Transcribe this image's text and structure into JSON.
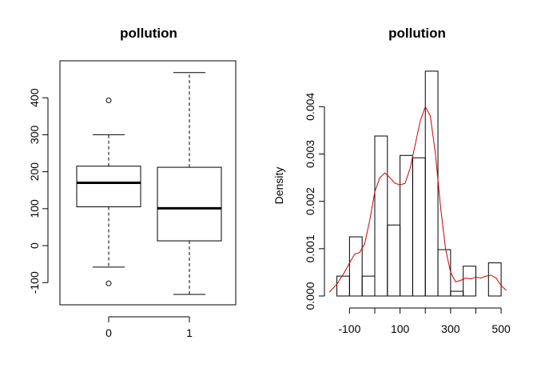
{
  "chart_data": [
    {
      "type": "boxplot",
      "title": "pollution",
      "xlabel": "",
      "ylabel": "",
      "categories": [
        "0",
        "1"
      ],
      "boxes": [
        {
          "whisker_low": -58,
          "q1": 105,
          "median": 170,
          "q3": 215,
          "whisker_high": 300,
          "outliers": [
            -102,
            393
          ]
        },
        {
          "whisker_low": -132,
          "q1": 13,
          "median": 101,
          "q3": 212,
          "whisker_high": 468,
          "outliers": []
        }
      ],
      "ylim": [
        -160,
        500
      ],
      "yticks": [
        -100,
        0,
        100,
        200,
        300,
        400
      ],
      "ytick_labels": [
        "-100",
        "0",
        "100",
        "200",
        "300",
        "400"
      ],
      "grid": false
    },
    {
      "type": "histogram",
      "title": "pollution",
      "xlabel": "",
      "ylabel": "Density",
      "bins": [
        {
          "x0": -150,
          "x1": -100,
          "density": 0.00042
        },
        {
          "x0": -100,
          "x1": -50,
          "density": 0.00125
        },
        {
          "x0": -50,
          "x1": 0,
          "density": 0.00042
        },
        {
          "x0": 0,
          "x1": 50,
          "density": 0.00338
        },
        {
          "x0": 50,
          "x1": 100,
          "density": 0.0015
        },
        {
          "x0": 100,
          "x1": 150,
          "density": 0.00297
        },
        {
          "x0": 150,
          "x1": 200,
          "density": 0.00292
        },
        {
          "x0": 200,
          "x1": 250,
          "density": 0.00475
        },
        {
          "x0": 250,
          "x1": 300,
          "density": 0.00098
        },
        {
          "x0": 300,
          "x1": 350,
          "density": 0.0001
        },
        {
          "x0": 350,
          "x1": 400,
          "density": 0.00063
        },
        {
          "x0": 400,
          "x1": 450,
          "density": 0
        },
        {
          "x0": 450,
          "x1": 500,
          "density": 0.0007
        }
      ],
      "density_curve": {
        "color": "#cc0000",
        "x": [
          -180,
          -150,
          -120,
          -100,
          -80,
          -60,
          -40,
          -20,
          0,
          20,
          40,
          60,
          80,
          100,
          120,
          140,
          160,
          180,
          200,
          220,
          240,
          260,
          280,
          300,
          320,
          340,
          360,
          380,
          400,
          420,
          440,
          460,
          480,
          500,
          520
        ],
        "y": [
          8e-05,
          0.00025,
          0.0005,
          0.0007,
          0.00088,
          0.00092,
          0.0011,
          0.0016,
          0.0022,
          0.0025,
          0.0026,
          0.0025,
          0.00238,
          0.00235,
          0.00238,
          0.0027,
          0.0032,
          0.0037,
          0.004,
          0.0038,
          0.003,
          0.0019,
          0.001,
          0.0005,
          0.0003,
          0.00033,
          0.00038,
          0.00036,
          0.0004,
          0.00038,
          0.00042,
          0.00044,
          0.00038,
          0.00022,
          0.00012
        ]
      },
      "xticks": [
        -100,
        0,
        100,
        200,
        300,
        400,
        500
      ],
      "xtick_labels": [
        "-100",
        "100",
        "300",
        "500"
      ],
      "ylim": [
        0,
        0.0048
      ],
      "yticks": [
        0,
        0.001,
        0.002,
        0.003,
        0.004
      ],
      "ytick_labels": [
        "0.000",
        "0.001",
        "0.002",
        "0.003",
        "0.004"
      ],
      "grid": false
    }
  ]
}
